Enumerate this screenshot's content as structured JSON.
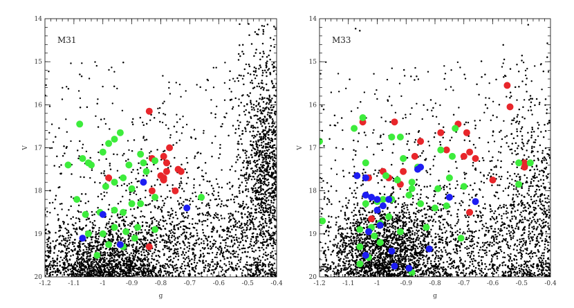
{
  "chart_data": [
    {
      "type": "scatter",
      "title": "M31",
      "xlabel": "g",
      "ylabel": "V",
      "xlim": [
        -1.2,
        -0.4
      ],
      "ylim": [
        20,
        14
      ],
      "xticks": [
        "-1.2",
        "-1.1",
        "-1",
        "-0.9",
        "-0.8",
        "-0.7",
        "-0.6",
        "-0.5",
        "-0.4"
      ],
      "yticks": [
        "14",
        "15",
        "16",
        "17",
        "18",
        "19",
        "20"
      ],
      "grid": false,
      "background_density": {
        "color": "#000000",
        "clusters": [
          [
            -1.0,
            19.6,
            0.12,
            0.45,
            1400
          ],
          [
            -0.43,
            17.6,
            0.05,
            1.5,
            1600
          ],
          [
            -0.7,
            19.2,
            0.18,
            0.6,
            900
          ],
          [
            -0.85,
            18.5,
            0.25,
            1.3,
            500
          ]
        ]
      },
      "series": [
        {
          "color": "#e8262b",
          "points": [
            [
              -0.84,
              16.15
            ],
            [
              -0.83,
              17.25
            ],
            [
              -0.79,
              17.2
            ],
            [
              -0.78,
              17.35
            ],
            [
              -0.77,
              17.0
            ],
            [
              -0.74,
              17.5
            ],
            [
              -0.73,
              17.55
            ],
            [
              -0.8,
              17.65
            ],
            [
              -0.79,
              17.7
            ],
            [
              -0.83,
              18.0
            ],
            [
              -0.79,
              17.75
            ],
            [
              -0.75,
              18.0
            ],
            [
              -0.78,
              17.55
            ],
            [
              -0.84,
              19.3
            ],
            [
              -0.98,
              17.7
            ]
          ]
        },
        {
          "color": "#3dec3c",
          "points": [
            [
              -1.12,
              17.4
            ],
            [
              -1.08,
              16.45
            ],
            [
              -1.07,
              17.25
            ],
            [
              -1.05,
              17.35
            ],
            [
              -1.04,
              17.4
            ],
            [
              -1.0,
              17.1
            ],
            [
              -0.98,
              16.9
            ],
            [
              -0.96,
              16.8
            ],
            [
              -0.94,
              16.65
            ],
            [
              -0.91,
              17.4
            ],
            [
              -0.87,
              17.15
            ],
            [
              -0.85,
              17.55
            ],
            [
              -0.86,
              17.35
            ],
            [
              -0.82,
              17.3
            ],
            [
              -0.96,
              17.8
            ],
            [
              -0.99,
              17.9
            ],
            [
              -0.93,
              17.7
            ],
            [
              -0.9,
              17.95
            ],
            [
              -1.09,
              18.2
            ],
            [
              -1.06,
              18.55
            ],
            [
              -1.01,
              18.5
            ],
            [
              -0.96,
              18.45
            ],
            [
              -0.93,
              18.5
            ],
            [
              -0.9,
              18.3
            ],
            [
              -0.87,
              18.3
            ],
            [
              -0.82,
              18.15
            ],
            [
              -0.66,
              18.15
            ],
            [
              -1.05,
              19.0
            ],
            [
              -0.96,
              18.85
            ],
            [
              -0.92,
              18.95
            ],
            [
              -0.88,
              18.85
            ],
            [
              -0.82,
              18.9
            ],
            [
              -0.98,
              19.25
            ],
            [
              -0.93,
              19.3
            ],
            [
              -1.02,
              19.5
            ],
            [
              -1.0,
              19.0
            ],
            [
              -0.89,
              19.1
            ]
          ]
        },
        {
          "color": "#1d1df2",
          "points": [
            [
              -1.07,
              19.1
            ],
            [
              -1.0,
              18.55
            ],
            [
              -0.86,
              17.8
            ],
            [
              -0.71,
              18.4
            ],
            [
              -0.94,
              19.25
            ]
          ]
        }
      ]
    },
    {
      "type": "scatter",
      "title": "M33",
      "xlabel": "g",
      "ylabel": "V",
      "xlim": [
        -1.2,
        -0.4
      ],
      "ylim": [
        20,
        14
      ],
      "xticks": [
        "-1.2",
        "-1.1",
        "-1",
        "-0.9",
        "-0.8",
        "-0.7",
        "-0.6",
        "-0.5",
        "-0.4"
      ],
      "yticks": [
        "14",
        "15",
        "16",
        "17",
        "18",
        "19",
        "20"
      ],
      "grid": false,
      "background_density": {
        "color": "#000000",
        "clusters": [
          [
            -0.98,
            19.4,
            0.1,
            0.55,
            1700
          ],
          [
            -0.45,
            18.5,
            0.08,
            1.3,
            900
          ],
          [
            -0.75,
            19.3,
            0.2,
            0.6,
            800
          ],
          [
            -0.85,
            18.3,
            0.3,
            1.4,
            600
          ]
        ]
      },
      "series": [
        {
          "color": "#e8262b",
          "points": [
            [
              -0.55,
              15.55
            ],
            [
              -0.54,
              16.05
            ],
            [
              -0.49,
              17.35
            ],
            [
              -0.49,
              17.45
            ],
            [
              -0.6,
              17.75
            ],
            [
              -0.69,
              16.65
            ],
            [
              -0.68,
              17.1
            ],
            [
              -0.66,
              17.25
            ],
            [
              -0.72,
              16.45
            ],
            [
              -0.78,
              16.65
            ],
            [
              -0.76,
              17.05
            ],
            [
              -0.7,
              17.2
            ],
            [
              -0.85,
              16.85
            ],
            [
              -0.87,
              17.2
            ],
            [
              -0.86,
              17.45
            ],
            [
              -0.91,
              17.55
            ],
            [
              -0.92,
              17.85
            ],
            [
              -0.94,
              16.4
            ],
            [
              -1.05,
              16.4
            ],
            [
              -1.03,
              17.7
            ],
            [
              -0.98,
              17.55
            ],
            [
              -0.96,
              17.7
            ],
            [
              -0.68,
              18.5
            ],
            [
              -1.02,
              18.65
            ]
          ]
        },
        {
          "color": "#3dec3c",
          "points": [
            [
              -1.2,
              16.85
            ],
            [
              -1.19,
              18.7
            ],
            [
              -1.08,
              16.55
            ],
            [
              -1.05,
              16.3
            ],
            [
              -1.04,
              17.35
            ],
            [
              -0.95,
              16.75
            ],
            [
              -0.92,
              16.75
            ],
            [
              -0.91,
              17.25
            ],
            [
              -0.97,
              17.65
            ],
            [
              -0.93,
              17.75
            ],
            [
              -0.88,
              17.8
            ],
            [
              -0.86,
              17.45
            ],
            [
              -0.78,
              17.05
            ],
            [
              -0.74,
              17.2
            ],
            [
              -0.73,
              16.55
            ],
            [
              -0.47,
              17.35
            ],
            [
              -0.51,
              17.35
            ],
            [
              -0.51,
              17.85
            ],
            [
              -0.7,
              17.9
            ],
            [
              -0.75,
              17.7
            ],
            [
              -0.79,
              17.95
            ],
            [
              -0.76,
              18.35
            ],
            [
              -0.8,
              18.4
            ],
            [
              -0.85,
              18.3
            ],
            [
              -0.88,
              17.95
            ],
            [
              -0.89,
              18.1
            ],
            [
              -0.95,
              18.2
            ],
            [
              -0.98,
              18.2
            ],
            [
              -1.0,
              18.25
            ],
            [
              -1.04,
              18.3
            ],
            [
              -0.96,
              18.6
            ],
            [
              -0.99,
              18.75
            ],
            [
              -1.02,
              18.85
            ],
            [
              -1.06,
              18.9
            ],
            [
              -1.01,
              19.05
            ],
            [
              -1.06,
              19.3
            ],
            [
              -0.99,
              19.2
            ],
            [
              -1.03,
              19.55
            ],
            [
              -1.06,
              19.7
            ],
            [
              -0.88,
              19.9
            ],
            [
              -0.92,
              18.95
            ],
            [
              -0.83,
              18.85
            ],
            [
              -0.71,
              19.1
            ]
          ]
        },
        {
          "color": "#1d1df2",
          "points": [
            [
              -1.07,
              17.65
            ],
            [
              -1.04,
              17.7
            ],
            [
              -1.04,
              18.1
            ],
            [
              -1.0,
              18.2
            ],
            [
              -1.02,
              18.15
            ],
            [
              -0.98,
              18.35
            ],
            [
              -0.96,
              18.2
            ],
            [
              -1.0,
              18.45
            ],
            [
              -1.03,
              18.95
            ],
            [
              -0.99,
              18.8
            ],
            [
              -0.86,
              17.5
            ],
            [
              -0.85,
              17.45
            ],
            [
              -0.75,
              18.15
            ],
            [
              -0.66,
              18.25
            ],
            [
              -0.82,
              19.35
            ],
            [
              -0.95,
              19.4
            ],
            [
              -0.94,
              19.75
            ],
            [
              -0.89,
              19.8
            ],
            [
              -1.04,
              19.5
            ]
          ]
        }
      ]
    }
  ]
}
